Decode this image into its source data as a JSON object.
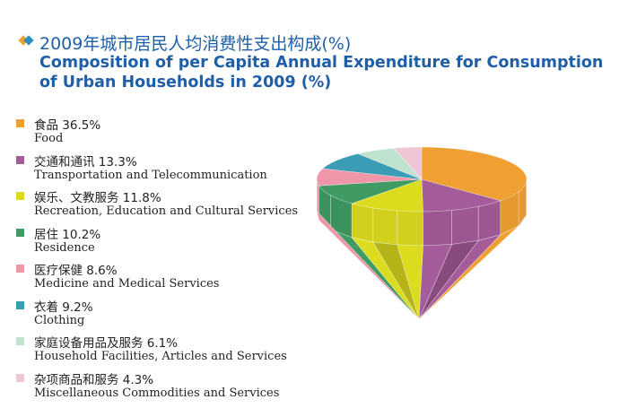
{
  "title": {
    "cn": "2009年城市居民人均消费性支出构成(%)",
    "en": "Composition of per Capita Annual Expenditure for Consumption of Urban Households in 2009 (%)"
  },
  "chart_data": {
    "type": "pie",
    "title": "2009年城市居民人均消费性支出构成(%) / Composition of per Capita Annual Expenditure for Consumption of Urban Households in 2009 (%)",
    "legend_position": "left",
    "series": [
      {
        "label_cn": "食品",
        "label_en": "Food",
        "value": 36.5,
        "value_text": "36.5%",
        "color": "#f0a033"
      },
      {
        "label_cn": "交通和通讯",
        "label_en": "Transportation and Telecommunication",
        "value": 13.3,
        "value_text": "13.3%",
        "color": "#a55c9a"
      },
      {
        "label_cn": "娱乐、文教服务",
        "label_en": "Recreation, Education and Cultural Services",
        "value": 11.8,
        "value_text": "11.8%",
        "color": "#dcdc1e"
      },
      {
        "label_cn": "居住",
        "label_en": "Residence",
        "value": 10.2,
        "value_text": "10.2%",
        "color": "#3f9a64"
      },
      {
        "label_cn": "医疗保健",
        "label_en": "Medicine and Medical Services",
        "value": 8.6,
        "value_text": "8.6%",
        "color": "#ef97a9"
      },
      {
        "label_cn": "衣着",
        "label_en": "Clothing",
        "value": 9.2,
        "value_text": "9.2%",
        "color": "#3a9cb5"
      },
      {
        "label_cn": "家庭设备用品及服务",
        "label_en": "Household Facilities, Articles and Services",
        "value": 6.1,
        "value_text": "6.1%",
        "color": "#bfe3cf"
      },
      {
        "label_cn": "杂项商品和服务",
        "label_en": "Miscellaneous Commodities and Services",
        "value": 4.3,
        "value_text": "4.3%",
        "color": "#eec6d4"
      }
    ]
  }
}
